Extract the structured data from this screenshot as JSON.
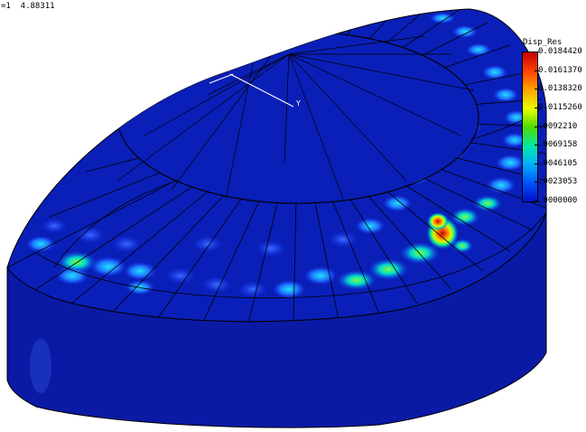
{
  "viewport": {
    "frame_label": "=1  4.88311",
    "axis_label": "Y"
  },
  "legend": {
    "title": "Disp_Res",
    "labels": [
      "0.0184420",
      "0.0161370",
      "0.0138320",
      "0.0115260",
      ".0092210",
      ".0069158",
      ".0046105",
      ".0023053",
      ".0000000"
    ],
    "colors": [
      "#c80000",
      "#ff4400",
      "#ffa200",
      "#e6ff00",
      "#4ddc00",
      "#00e8a8",
      "#00b0ff",
      "#0050ff",
      "#0010c8"
    ]
  },
  "colors": {
    "background": "#ffffff",
    "model_base": "#0a1fb8",
    "side_wall": "#0a1aa5",
    "mesh_lines": "#000000"
  }
}
